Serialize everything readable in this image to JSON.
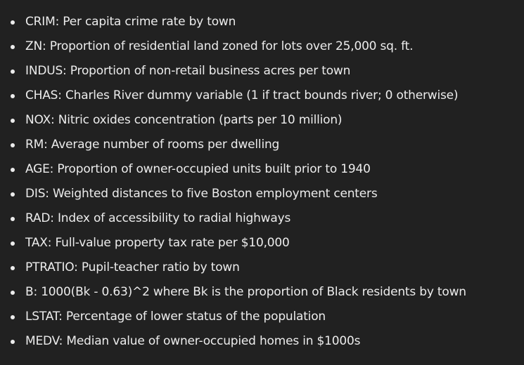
{
  "items": [
    {
      "text": "CRIM: Per capita crime rate by town"
    },
    {
      "text": "ZN: Proportion of residential land zoned for lots over 25,000 sq. ft."
    },
    {
      "text": "INDUS: Proportion of non-retail business acres per town"
    },
    {
      "text": "CHAS: Charles River dummy variable (1 if tract bounds river; 0 otherwise)"
    },
    {
      "text": "NOX: Nitric oxides concentration (parts per 10 million)"
    },
    {
      "text": "RM: Average number of rooms per dwelling"
    },
    {
      "text": "AGE: Proportion of owner-occupied units built prior to 1940"
    },
    {
      "text": "DIS: Weighted distances to five Boston employment centers"
    },
    {
      "text": "RAD: Index of accessibility to radial highways"
    },
    {
      "text": "TAX: Full-value property tax rate per $10,000"
    },
    {
      "text": "PTRATIO: Pupil-teacher ratio by town"
    },
    {
      "text": "B: 1000(Bk - 0.63)^2 where Bk is the proportion of Black residents by town"
    },
    {
      "text": "LSTAT: Percentage of lower status of the population"
    },
    {
      "text": "MEDV: Median value of owner-occupied homes in $1000s"
    }
  ],
  "colors": {
    "background": "#212121",
    "text": "#ececec"
  }
}
